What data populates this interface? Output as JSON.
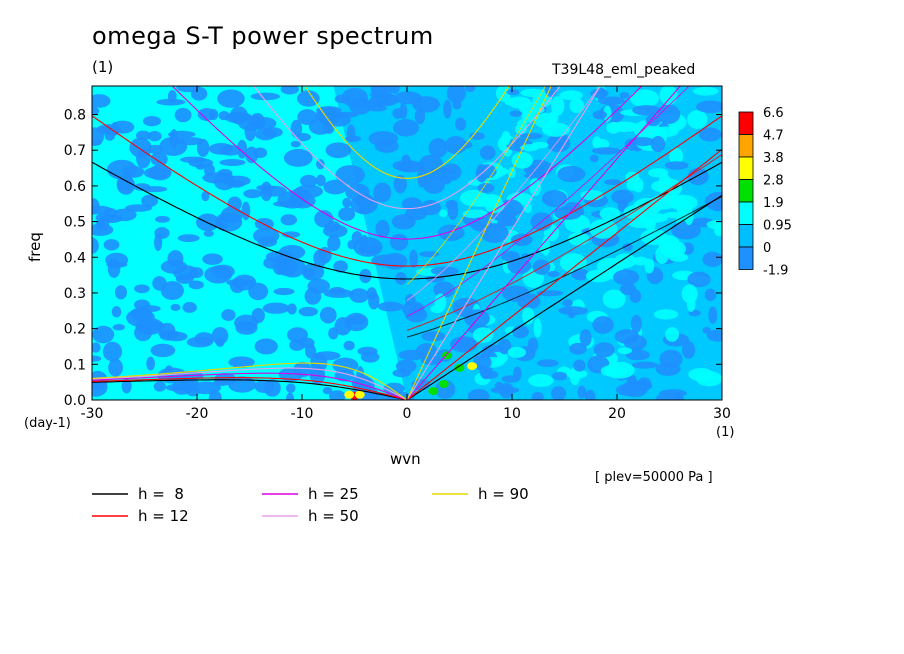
{
  "title": "omega S-T power spectrum",
  "subtitle": "(1)",
  "run_name": "T39L48_eml_peaked",
  "ylabel": "freq",
  "ylabel_unit": "(day-1)",
  "xlabel": "wvn",
  "xlabel_unit": "(1)",
  "annotation": "[ plev=50000 Pa ]",
  "chart_data": {
    "type": "heatmap",
    "title": "omega S-T power spectrum",
    "xlabel": "wvn",
    "ylabel": "freq",
    "xlim": [
      -30,
      30
    ],
    "ylim": [
      0,
      0.88
    ],
    "x_ticks": [
      "-30",
      "-20",
      "-10",
      "0",
      "10",
      "20",
      "30"
    ],
    "y_ticks": [
      "0.0",
      "0.1",
      "0.2",
      "0.3",
      "0.4",
      "0.5",
      "0.6",
      "0.7",
      "0.8"
    ],
    "colorbar": {
      "labels": [
        "6.6",
        "4.7",
        "3.8",
        "2.8",
        "1.9",
        "0.95",
        "0",
        "-1.9"
      ],
      "colors": [
        "#ff0000",
        "#ffa500",
        "#ffff00",
        "#00e000",
        "#00ffff",
        "#00bfff",
        "#1e90ff"
      ]
    },
    "background_levels": {
      "west_color": "#00ffff",
      "east_color": "#00bfff",
      "patch_color": "#1e90ff"
    },
    "highlights": [
      {
        "x": -5.0,
        "y": 0.012,
        "color": "#ff0000"
      },
      {
        "x": -5.5,
        "y": 0.015,
        "color": "#ffff00"
      },
      {
        "x": -4.5,
        "y": 0.015,
        "color": "#ffff00"
      },
      {
        "x": 2.5,
        "y": 0.025,
        "color": "#00e000"
      },
      {
        "x": 3.5,
        "y": 0.045,
        "color": "#00e000"
      },
      {
        "x": 5.0,
        "y": 0.09,
        "color": "#00e000"
      },
      {
        "x": 6.2,
        "y": 0.095,
        "color": "#ffff00"
      },
      {
        "x": 3.8,
        "y": 0.125,
        "color": "#00e000"
      }
    ],
    "dispersion_curves": [
      {
        "name": "h =  8",
        "h": 8,
        "color": "#000000"
      },
      {
        "name": "h = 12",
        "h": 12,
        "color": "#ff0000"
      },
      {
        "name": "h = 25",
        "h": 25,
        "color": "#e000e0"
      },
      {
        "name": "h = 50",
        "h": 50,
        "color": "#e8a0e8"
      },
      {
        "name": "h = 90",
        "h": 90,
        "color": "#e8d800"
      }
    ]
  }
}
